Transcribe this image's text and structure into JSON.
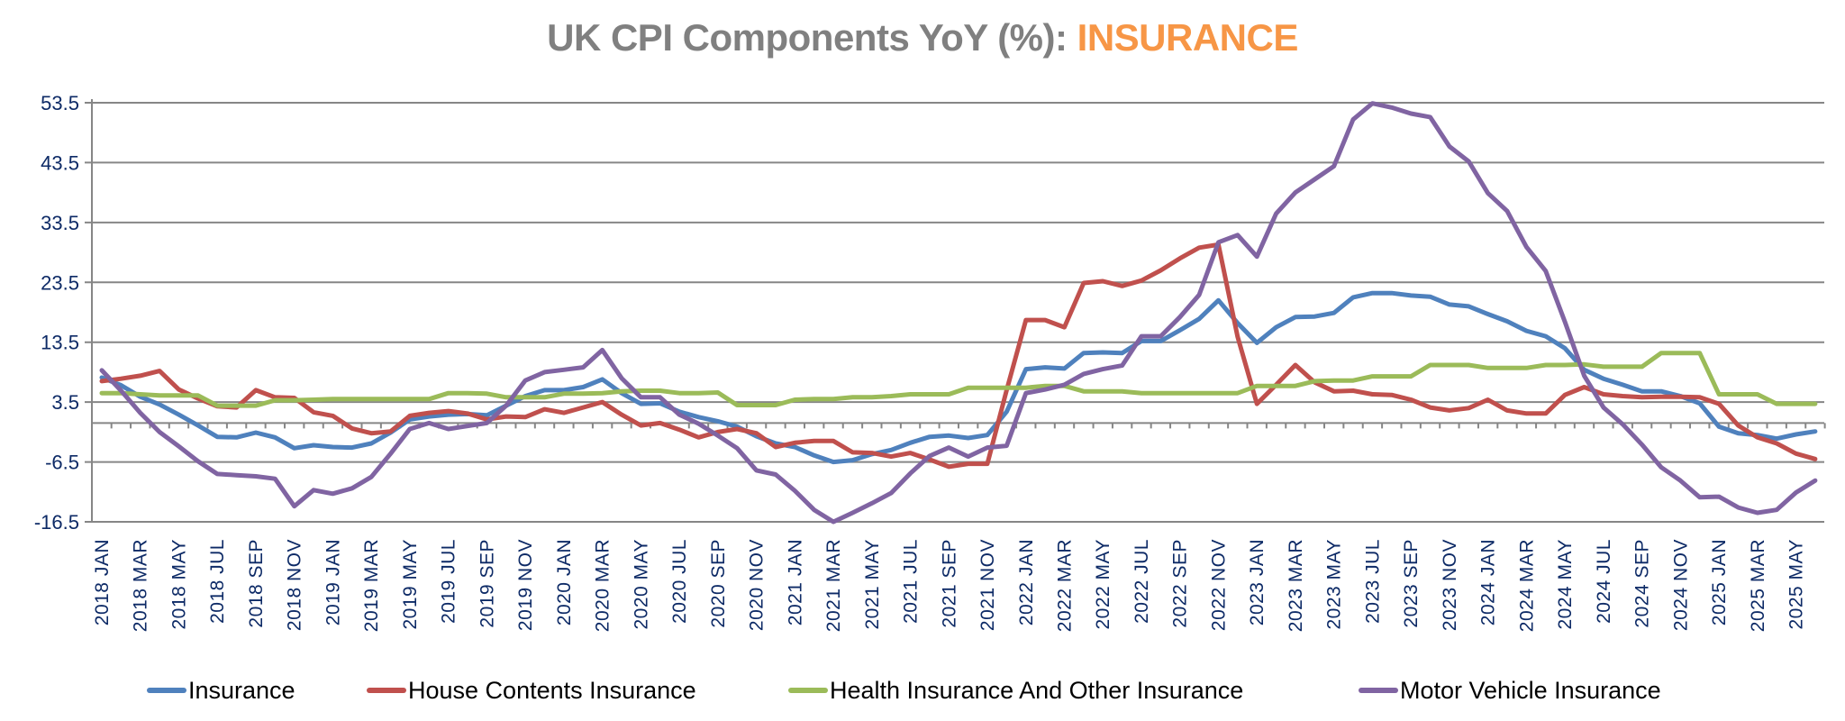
{
  "chart_data": {
    "type": "line",
    "title": "UK CPI Components YoY (%): ",
    "title_highlight": "INSURANCE",
    "title_color": "#808080",
    "title_highlight_color": "#F79646",
    "xlabel": "",
    "ylabel": "",
    "ylim": [
      -16.5,
      53.5
    ],
    "yticks": [
      53.5,
      43.5,
      33.5,
      23.5,
      13.5,
      3.5,
      -6.5,
      -16.5
    ],
    "ytick_labels": [
      "53.5",
      "43.5",
      "33.5",
      "23.5",
      "13.5",
      "3.5",
      "-6.5",
      "-16.5"
    ],
    "grid": true,
    "legend_position": "bottom",
    "x_start": "2018 JAN",
    "x_end": "2025 JUN",
    "x_label_every": 2,
    "x": [
      "2018 JAN",
      "2018 FEB",
      "2018 MAR",
      "2018 APR",
      "2018 MAY",
      "2018 JUN",
      "2018 JUL",
      "2018 AUG",
      "2018 SEP",
      "2018 OCT",
      "2018 NOV",
      "2018 DEC",
      "2019 JAN",
      "2019 FEB",
      "2019 MAR",
      "2019 APR",
      "2019 MAY",
      "2019 JUN",
      "2019 JUL",
      "2019 AUG",
      "2019 SEP",
      "2019 OCT",
      "2019 NOV",
      "2019 DEC",
      "2020 JAN",
      "2020 FEB",
      "2020 MAR",
      "2020 APR",
      "2020 MAY",
      "2020 JUN",
      "2020 JUL",
      "2020 AUG",
      "2020 SEP",
      "2020 OCT",
      "2020 NOV",
      "2020 DEC",
      "2021 JAN",
      "2021 FEB",
      "2021 MAR",
      "2021 APR",
      "2021 MAY",
      "2021 JUN",
      "2021 JUL",
      "2021 AUG",
      "2021 SEP",
      "2021 OCT",
      "2021 NOV",
      "2021 DEC",
      "2022 JAN",
      "2022 FEB",
      "2022 MAR",
      "2022 APR",
      "2022 MAY",
      "2022 JUN",
      "2022 JUL",
      "2022 AUG",
      "2022 SEP",
      "2022 OCT",
      "2022 NOV",
      "2022 DEC",
      "2023 JAN",
      "2023 FEB",
      "2023 MAR",
      "2023 APR",
      "2023 MAY",
      "2023 JUN",
      "2023 JUL",
      "2023 AUG",
      "2023 SEP",
      "2023 OCT",
      "2023 NOV",
      "2023 DEC",
      "2024 JAN",
      "2024 FEB",
      "2024 MAR",
      "2024 APR",
      "2024 MAY",
      "2024 JUN",
      "2024 JUL",
      "2024 AUG",
      "2024 SEP",
      "2024 OCT",
      "2024 NOV",
      "2024 DEC",
      "2025 JAN",
      "2025 FEB",
      "2025 MAR",
      "2025 APR",
      "2025 MAY",
      "2025 JUN"
    ],
    "series": [
      {
        "name": "Insurance",
        "color": "#4F81BD",
        "values": [
          7.6,
          6.3,
          4.4,
          3.1,
          1.4,
          -0.4,
          -2.3,
          -2.4,
          -1.6,
          -2.4,
          -4.2,
          -3.7,
          -4.0,
          -4.1,
          -3.4,
          -1.6,
          0.6,
          1.1,
          1.4,
          1.5,
          1.3,
          2.9,
          4.5,
          5.5,
          5.5,
          6.0,
          7.3,
          5.0,
          3.2,
          3.3,
          1.9,
          1.0,
          0.3,
          -0.6,
          -2.2,
          -3.4,
          -4.0,
          -5.4,
          -6.5,
          -6.2,
          -5.2,
          -4.5,
          -3.3,
          -2.3,
          -2.1,
          -2.5,
          -2.0,
          1.9,
          9.0,
          9.3,
          9.1,
          11.7,
          11.8,
          11.7,
          13.7,
          13.7,
          15.5,
          17.4,
          20.5,
          16.7,
          13.4,
          16.0,
          17.7,
          17.8,
          18.4,
          21.0,
          21.7,
          21.7,
          21.3,
          21.1,
          19.8,
          19.5,
          18.2,
          17.0,
          15.4,
          14.5,
          12.5,
          8.9,
          7.4,
          6.4,
          5.3,
          5.3,
          4.5,
          3.3,
          -0.6,
          -1.7,
          -2.0,
          -2.6,
          -1.9,
          -1.4
        ]
      },
      {
        "name": "House Contents Insurance",
        "color": "#C0504D",
        "values": [
          7.0,
          7.4,
          7.9,
          8.7,
          5.6,
          4.1,
          2.8,
          2.6,
          5.5,
          4.3,
          4.2,
          1.8,
          1.2,
          -0.9,
          -1.7,
          -1.4,
          1.2,
          1.7,
          2.0,
          1.6,
          0.6,
          1.1,
          1.0,
          2.3,
          1.7,
          2.6,
          3.5,
          1.4,
          -0.4,
          0.0,
          -1.1,
          -2.4,
          -1.5,
          -1.0,
          -1.7,
          -4.0,
          -3.3,
          -3.0,
          -3.0,
          -4.9,
          -5.0,
          -5.6,
          -5.0,
          -6.1,
          -7.3,
          -6.8,
          -6.8,
          5.5,
          17.2,
          17.2,
          16.0,
          23.4,
          23.7,
          22.9,
          23.8,
          25.5,
          27.5,
          29.3,
          29.8,
          14.4,
          3.2,
          6.4,
          9.7,
          6.8,
          5.3,
          5.4,
          4.8,
          4.7,
          3.9,
          2.6,
          2.1,
          2.5,
          3.9,
          2.1,
          1.6,
          1.6,
          4.7,
          6.0,
          4.8,
          4.5,
          4.3,
          4.4,
          4.4,
          4.3,
          3.2,
          -0.4,
          -2.4,
          -3.4,
          -5.1,
          -6.0
        ]
      },
      {
        "name": "Health Insurance And Other Insurance",
        "color": "#9BBB59",
        "values": [
          5.0,
          5.0,
          4.8,
          4.6,
          4.6,
          4.6,
          2.9,
          2.9,
          2.9,
          3.8,
          3.8,
          3.9,
          4.0,
          4.0,
          4.0,
          4.0,
          4.0,
          4.0,
          5.0,
          5.0,
          4.9,
          4.3,
          4.3,
          4.3,
          4.9,
          4.9,
          5.0,
          5.3,
          5.4,
          5.4,
          5.0,
          5.0,
          5.1,
          3.0,
          3.0,
          3.0,
          3.9,
          4.0,
          4.0,
          4.3,
          4.3,
          4.5,
          4.8,
          4.8,
          4.8,
          5.9,
          5.9,
          5.9,
          5.9,
          6.2,
          6.2,
          5.3,
          5.3,
          5.3,
          5.0,
          5.0,
          5.0,
          5.0,
          5.0,
          5.0,
          6.2,
          6.2,
          6.2,
          7.0,
          7.1,
          7.1,
          7.8,
          7.8,
          7.8,
          9.7,
          9.7,
          9.7,
          9.2,
          9.2,
          9.2,
          9.7,
          9.7,
          9.8,
          9.4,
          9.4,
          9.4,
          11.7,
          11.7,
          11.7,
          4.8,
          4.8,
          4.8,
          3.2,
          3.2,
          3.2
        ]
      },
      {
        "name": "Motor Vehicle Insurance",
        "color": "#8064A2",
        "values": [
          8.8,
          5.4,
          1.7,
          -1.5,
          -3.9,
          -6.4,
          -8.5,
          -8.7,
          -8.9,
          -9.3,
          -13.9,
          -11.2,
          -11.8,
          -10.9,
          -9.0,
          -5.1,
          -1.0,
          0.0,
          -1.0,
          -0.5,
          0.0,
          2.9,
          7.1,
          8.5,
          8.9,
          9.3,
          12.2,
          7.5,
          4.3,
          4.3,
          1.4,
          -0.1,
          -2.1,
          -4.2,
          -7.9,
          -8.6,
          -11.3,
          -14.5,
          -16.5,
          -15.0,
          -13.4,
          -11.7,
          -8.4,
          -5.5,
          -4.1,
          -5.6,
          -4.1,
          -3.8,
          5.0,
          5.6,
          6.4,
          8.2,
          9.0,
          9.6,
          14.5,
          14.5,
          17.7,
          21.4,
          30.2,
          31.4,
          27.8,
          35.0,
          38.5,
          40.7,
          42.9,
          50.7,
          53.4,
          52.7,
          51.7,
          51.1,
          46.2,
          43.7,
          38.4,
          35.4,
          29.4,
          25.4,
          16.9,
          7.9,
          2.6,
          -0.2,
          -3.6,
          -7.4,
          -9.6,
          -12.4,
          -12.3,
          -14.1,
          -15.0,
          -14.5,
          -11.6,
          -9.6
        ]
      }
    ]
  }
}
